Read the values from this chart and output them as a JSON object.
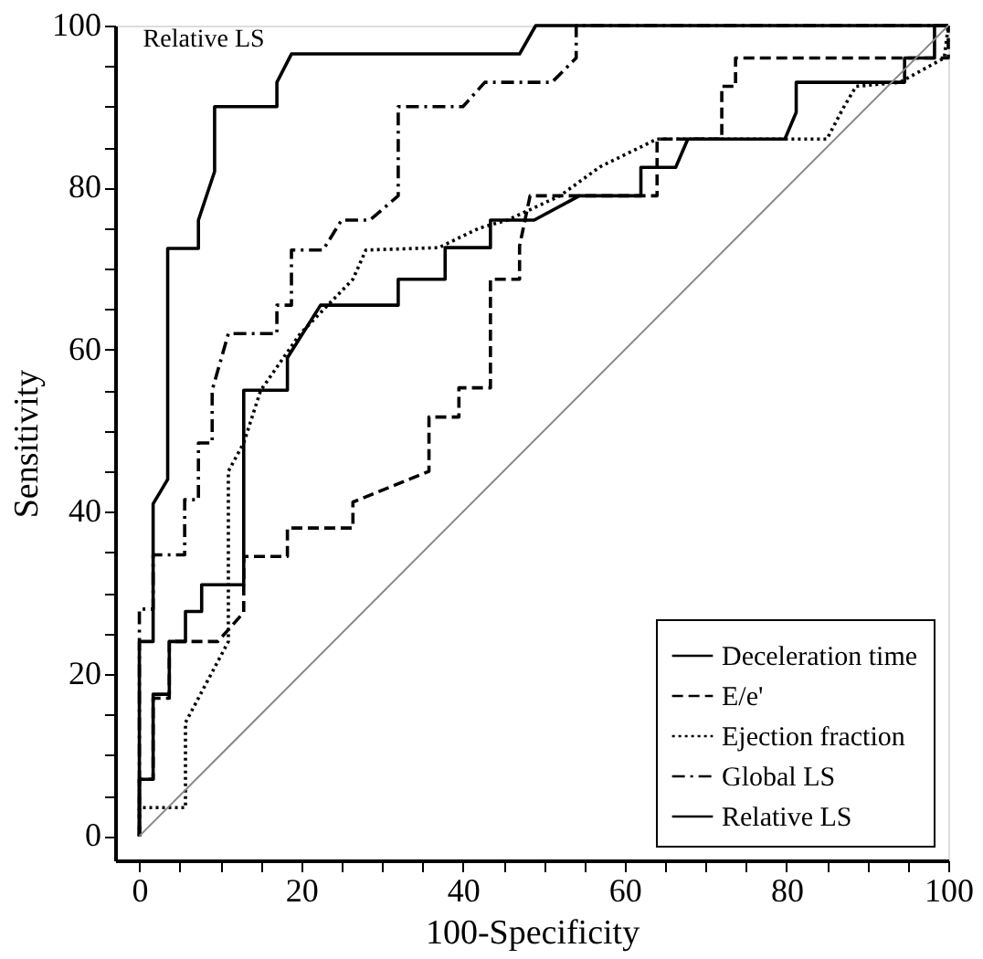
{
  "chart_data": {
    "type": "line",
    "xlabel": "100-Specificity",
    "ylabel": "Sensitivity",
    "xlim": [
      -3,
      100
    ],
    "ylim": [
      -3,
      100
    ],
    "xticks": [
      0,
      {
        "value": 5,
        "label": null
      },
      {
        "value": 10,
        "label": null
      },
      {
        "value": 15,
        "label": null
      },
      20,
      {
        "value": 25,
        "label": null
      },
      {
        "value": 30,
        "label": null
      },
      {
        "value": 35,
        "label": null
      },
      40,
      {
        "value": 45,
        "label": null
      },
      {
        "value": 50,
        "label": null
      },
      {
        "value": 55,
        "label": null
      },
      60,
      {
        "value": 65,
        "label": null
      },
      {
        "value": 70,
        "label": null
      },
      {
        "value": 75,
        "label": null
      },
      80,
      {
        "value": 85,
        "label": null
      },
      {
        "value": 90,
        "label": null
      },
      {
        "value": 95,
        "label": null
      },
      100
    ],
    "yticks": [
      0,
      {
        "value": 5,
        "label": null
      },
      {
        "value": 10,
        "label": null
      },
      {
        "value": 15,
        "label": null
      },
      20,
      {
        "value": 25,
        "label": null
      },
      {
        "value": 30,
        "label": null
      },
      {
        "value": 35,
        "label": null
      },
      40,
      {
        "value": 45,
        "label": null
      },
      {
        "value": 50,
        "label": null
      },
      {
        "value": 55,
        "label": null
      },
      60,
      {
        "value": 65,
        "label": null
      },
      {
        "value": 70,
        "label": null
      },
      {
        "value": 75,
        "label": null
      },
      80,
      {
        "value": 85,
        "label": null
      },
      {
        "value": 90,
        "label": null
      },
      {
        "value": 95,
        "label": null
      },
      100
    ],
    "grid": false,
    "legend": "bottom right",
    "marker": "none",
    "series": [
      {
        "name": "Deceleration time",
        "color": "#000000",
        "line_style": "solid",
        "x": [
          0,
          0,
          1.7,
          1.7,
          3.7,
          3.7,
          5.7,
          5.7,
          7.7,
          7.7,
          12.9,
          12.9,
          18.3,
          18.3,
          22.4,
          32,
          32,
          37.8,
          37.8,
          43.4,
          43.4,
          48.8,
          54.4,
          62,
          62,
          66.3,
          67.8,
          79.8,
          81.2,
          81.2,
          94.6,
          94.6,
          98.3,
          98.3,
          100
        ],
        "values": [
          0,
          7,
          7,
          17.5,
          17.5,
          24,
          24,
          27.7,
          27.7,
          31,
          31,
          55,
          55,
          59,
          65.5,
          65.5,
          68.7,
          68.7,
          72.6,
          72.6,
          76,
          76,
          79,
          79,
          82.5,
          82.5,
          86,
          86,
          89.3,
          93,
          93,
          96,
          96,
          100,
          100
        ]
      },
      {
        "name": "E/e'",
        "color": "#000000",
        "line_style": "dashed",
        "x": [
          0,
          0,
          1.7,
          1.7,
          3.7,
          3.7,
          9.7,
          12.9,
          12.9,
          18.3,
          18.3,
          26.4,
          26.4,
          35.8,
          35.8,
          39.5,
          39.5,
          43.4,
          43.4,
          45.6,
          47,
          47,
          48.3,
          64,
          64,
          72,
          72,
          73.7,
          73.7,
          100,
          100
        ],
        "values": [
          0,
          7,
          7,
          17,
          17,
          24,
          24,
          27.6,
          34.5,
          34.5,
          38,
          38,
          41.2,
          45,
          51.7,
          51.7,
          55.3,
          55.3,
          68.7,
          68.7,
          68.7,
          72.8,
          79,
          79,
          86,
          86,
          92.5,
          92.5,
          96,
          96,
          100
        ]
      },
      {
        "name": "Ejection fraction",
        "color": "#000000",
        "line_style": "dotted",
        "x": [
          0,
          0,
          5.7,
          5.7,
          11,
          11,
          12.9,
          15,
          19.9,
          26.4,
          28,
          37,
          42,
          45.5,
          52,
          57,
          64,
          85,
          87,
          88.6,
          94,
          99.5,
          100
        ],
        "values": [
          0,
          3.5,
          3.5,
          14,
          24,
          45,
          48.5,
          55,
          62,
          68.7,
          72.3,
          72.6,
          75,
          76,
          79,
          82.6,
          86,
          86,
          89.8,
          92.5,
          93,
          96,
          100
        ]
      },
      {
        "name": "Global LS",
        "color": "#000000",
        "line_style": "dashdot",
        "x": [
          0,
          0,
          1.7,
          1.7,
          5.6,
          5.6,
          7.3,
          7.3,
          9,
          9,
          11,
          17,
          17,
          18.8,
          18.8,
          22.7,
          25,
          28.5,
          32,
          32,
          40,
          42.7,
          51,
          54,
          54,
          100
        ],
        "values": [
          0,
          28,
          28,
          34.7,
          34.7,
          41.5,
          41.5,
          48.5,
          48.5,
          55,
          62,
          62,
          65.5,
          65.5,
          72.3,
          72.3,
          76,
          76,
          79,
          90,
          90,
          93,
          93,
          96,
          100,
          100
        ]
      },
      {
        "name": "Relative LS",
        "color": "#000000",
        "line_style": "solid",
        "x": [
          0,
          0,
          1.7,
          1.7,
          3.5,
          3.5,
          7.3,
          7.3,
          9.3,
          9.3,
          17,
          17,
          18.8,
          47,
          49,
          100
        ],
        "values": [
          0,
          24,
          24,
          41,
          44,
          72.5,
          72.5,
          76,
          82,
          90,
          90,
          93,
          96.5,
          96.5,
          100,
          100
        ]
      },
      {
        "color": "#888888",
        "line_style": "solid",
        "x": [
          0,
          100
        ],
        "values": [
          0,
          100
        ]
      }
    ],
    "annotations": [
      {
        "text": "Relative LS",
        "x": 17,
        "y": 91.5
      }
    ]
  }
}
